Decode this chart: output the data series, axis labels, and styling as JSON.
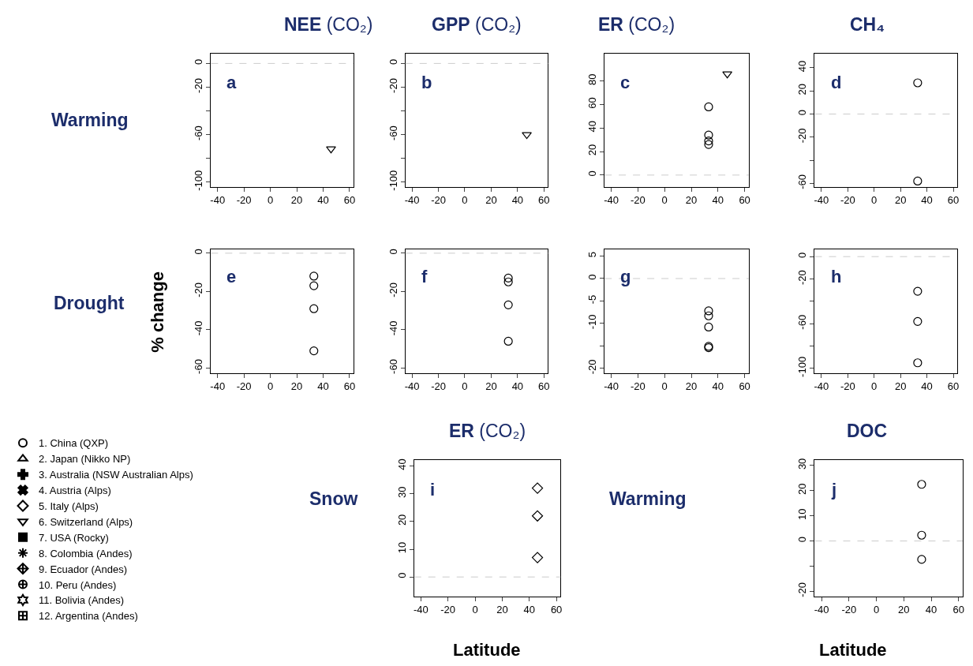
{
  "chart_data": [
    {
      "type": "scatter",
      "title": "NEE (CO₂)",
      "annotations": [
        "a",
        "Warming"
      ],
      "xlim": [
        -45,
        63
      ],
      "xticks": [
        -40,
        -20,
        0,
        20,
        40,
        60
      ],
      "ylim": [
        -104,
        8
      ],
      "yticks": [
        0,
        -20,
        {
          "value": -40,
          "label": null
        },
        -60,
        {
          "value": -80,
          "label": null
        },
        -100
      ],
      "ref_lines": [
        {
          "axis": "y",
          "value": 0,
          "color": "#cccccc",
          "line_style": "dashed"
        }
      ],
      "grid": false,
      "series": [
        {
          "color": "#000000",
          "marker": "triangle-down-open",
          "x": [
            46
          ],
          "values": [
            -72
          ]
        }
      ]
    },
    {
      "type": "scatter",
      "title": "GPP (CO₂)",
      "annotations": [
        "b"
      ],
      "xlim": [
        -45,
        63
      ],
      "xticks": [
        -40,
        -20,
        0,
        20,
        40,
        60
      ],
      "ylim": [
        -104,
        8
      ],
      "yticks": [
        0,
        -20,
        {
          "value": -40,
          "label": null
        },
        -60,
        {
          "value": -80,
          "label": null
        },
        -100
      ],
      "ref_lines": [
        {
          "axis": "y",
          "value": 0,
          "color": "#cccccc",
          "line_style": "dashed"
        }
      ],
      "grid": false,
      "series": [
        {
          "color": "#000000",
          "marker": "triangle-down-open",
          "x": [
            47
          ],
          "values": [
            -60
          ]
        }
      ]
    },
    {
      "type": "scatter",
      "title": "ER (CO₂)",
      "annotations": [
        "c"
      ],
      "xlim": [
        -45,
        63
      ],
      "xticks": [
        -40,
        -20,
        0,
        20,
        40,
        60
      ],
      "ylim": [
        -10,
        103
      ],
      "yticks": [
        0,
        20,
        40,
        60,
        80
      ],
      "ref_lines": [
        {
          "axis": "y",
          "value": 0,
          "color": "#cccccc",
          "line_style": "dashed"
        }
      ],
      "grid": false,
      "series": [
        {
          "color": "#000000",
          "marker": "circle-open",
          "x": [
            33,
            33,
            33,
            33
          ],
          "values": [
            58,
            34,
            29,
            26
          ]
        },
        {
          "color": "#000000",
          "marker": "triangle-down-open",
          "x": [
            47
          ],
          "values": [
            86
          ]
        }
      ]
    },
    {
      "type": "scatter",
      "title": "CH₄",
      "annotations": [
        "d"
      ],
      "xlim": [
        -45,
        63
      ],
      "xticks": [
        -40,
        -20,
        0,
        20,
        40,
        60
      ],
      "ylim": [
        -63,
        52
      ],
      "yticks": [
        40,
        20,
        0,
        -20,
        {
          "value": -40,
          "label": null
        },
        -60
      ],
      "ref_lines": [
        {
          "axis": "y",
          "value": 0,
          "color": "#cccccc",
          "line_style": "dashed"
        }
      ],
      "grid": false,
      "series": [
        {
          "color": "#000000",
          "marker": "circle-open",
          "x": [
            33,
            33
          ],
          "values": [
            27,
            -58
          ]
        }
      ]
    },
    {
      "type": "scatter",
      "ylabel": "% change",
      "annotations": [
        "e",
        "Drought"
      ],
      "xlim": [
        -45,
        63
      ],
      "xticks": [
        -40,
        -20,
        0,
        20,
        40,
        60
      ],
      "ylim": [
        -62.5,
        2
      ],
      "yticks": [
        0,
        -20,
        -40,
        -60
      ],
      "ref_lines": [
        {
          "axis": "y",
          "value": 0,
          "color": "#cccccc",
          "line_style": "dashed"
        }
      ],
      "grid": false,
      "series": [
        {
          "color": "#000000",
          "marker": "circle-open",
          "x": [
            33,
            33,
            33,
            33
          ],
          "values": [
            -12,
            -17,
            -29,
            -51
          ]
        }
      ]
    },
    {
      "type": "scatter",
      "annotations": [
        "f"
      ],
      "xlim": [
        -45,
        63
      ],
      "xticks": [
        -40,
        -20,
        0,
        20,
        40,
        60
      ],
      "ylim": [
        -62.5,
        2
      ],
      "yticks": [
        0,
        -20,
        -40,
        -60
      ],
      "ref_lines": [
        {
          "axis": "y",
          "value": 0,
          "color": "#cccccc",
          "line_style": "dashed"
        }
      ],
      "grid": false,
      "series": [
        {
          "color": "#000000",
          "marker": "circle-open",
          "x": [
            33,
            33,
            33,
            33
          ],
          "values": [
            -13,
            -15,
            -27,
            -46
          ]
        }
      ]
    },
    {
      "type": "scatter",
      "annotations": [
        "g"
      ],
      "xlim": [
        -45,
        63
      ],
      "xticks": [
        -40,
        -20,
        0,
        20,
        40,
        60
      ],
      "ylim": [
        -21,
        6.5
      ],
      "yticks": [
        5,
        0,
        -5,
        -10,
        {
          "value": -15,
          "label": null
        },
        -20
      ],
      "ref_lines": [
        {
          "axis": "y",
          "value": 0,
          "color": "#cccccc",
          "line_style": "dashed"
        }
      ],
      "grid": false,
      "series": [
        {
          "color": "#000000",
          "marker": "circle-open",
          "x": [
            33,
            33,
            33,
            33,
            33
          ],
          "values": [
            -7.2,
            -8.3,
            -10.8,
            -15.1,
            -15.4
          ]
        }
      ]
    },
    {
      "type": "scatter",
      "annotations": [
        "h"
      ],
      "xlim": [
        -45,
        63
      ],
      "xticks": [
        -40,
        -20,
        0,
        20,
        40,
        60
      ],
      "ylim": [
        -104,
        6.5
      ],
      "yticks": [
        0,
        -20,
        {
          "value": -40,
          "label": null
        },
        -60,
        {
          "value": -80,
          "label": null
        },
        -100
      ],
      "ref_lines": [
        {
          "axis": "y",
          "value": 0,
          "color": "#cccccc",
          "line_style": "dashed"
        }
      ],
      "grid": false,
      "series": [
        {
          "color": "#000000",
          "marker": "circle-open",
          "x": [
            33,
            33,
            33
          ],
          "values": [
            -31,
            -58,
            -95
          ]
        }
      ]
    },
    {
      "type": "scatter",
      "title": "ER (CO₂)",
      "xlabel": "Latitude",
      "annotations": [
        "i",
        "Snow"
      ],
      "xlim": [
        -45,
        63
      ],
      "xticks": [
        -40,
        -20,
        0,
        20,
        40,
        60
      ],
      "ylim": [
        -7,
        42
      ],
      "yticks": [
        0,
        10,
        20,
        30,
        40
      ],
      "ref_lines": [
        {
          "axis": "y",
          "value": 0,
          "color": "#cccccc",
          "line_style": "dashed"
        }
      ],
      "grid": false,
      "series": [
        {
          "color": "#000000",
          "marker": "diamond-open",
          "x": [
            46,
            46,
            46
          ],
          "values": [
            32,
            22,
            7
          ]
        }
      ]
    },
    {
      "type": "scatter",
      "title": "DOC",
      "xlabel": "Latitude",
      "annotations": [
        "j",
        "Warming"
      ],
      "xlim": [
        -45,
        63
      ],
      "xticks": [
        -40,
        -20,
        0,
        20,
        40,
        60
      ],
      "ylim": [
        -22,
        32
      ],
      "yticks": [
        -20,
        {
          "value": -10,
          "label": null
        },
        0,
        10,
        20,
        30
      ],
      "ref_lines": [
        {
          "axis": "y",
          "value": 0,
          "color": "#cccccc",
          "line_style": "dashed"
        }
      ],
      "grid": false,
      "series": [
        {
          "color": "#000000",
          "marker": "circle-open",
          "x": [
            33,
            33,
            33
          ],
          "values": [
            22.5,
            2.3,
            -7.3
          ]
        }
      ]
    },
    {
      "type": "other",
      "legend": "bottom left",
      "series": [
        {
          "name": "1. China (QXP)",
          "color": "#000000",
          "marker": "circle-open"
        },
        {
          "name": "2. Japan (Nikko NP)",
          "color": "#000000",
          "marker": "triangle-up-open"
        },
        {
          "name": "3. Australia (NSW Australian Alps)",
          "color": "#000000",
          "marker": "cross"
        },
        {
          "name": "4. Austria (Alps)",
          "color": "#000000",
          "marker": "x"
        },
        {
          "name": "5. Italy (Alps)",
          "color": "#000000",
          "marker": "diamond-open"
        },
        {
          "name": "6. Switzerland (Alps)",
          "color": "#000000",
          "marker": "triangle-down-open"
        },
        {
          "name": "7. USA (Rocky)",
          "color": "#000000",
          "marker": "square-x"
        },
        {
          "name": "8. Colombia (Andes)",
          "color": "#000000",
          "marker": "asterisk-open"
        },
        {
          "name": "9. Ecuador (Andes)",
          "color": "#000000",
          "marker": "diamond-cross-open"
        },
        {
          "name": "10. Peru (Andes)",
          "color": "#000000",
          "marker": "circle-cross-open"
        },
        {
          "name": "11. Bolivia (Andes)",
          "color": "#000000",
          "marker": "hexagram-open"
        },
        {
          "name": "12. Argentina (Andes)",
          "color": "#000000",
          "marker": "square-cross-open"
        }
      ]
    }
  ]
}
